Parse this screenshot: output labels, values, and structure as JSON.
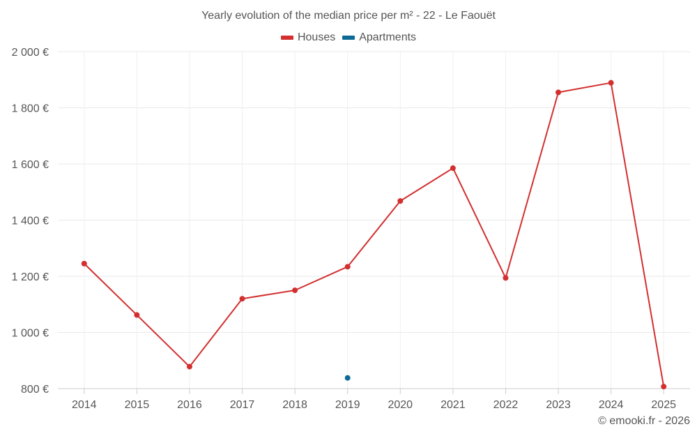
{
  "chart_data": {
    "type": "line",
    "title": "Yearly evolution of the median price per m² - 22 - Le Faouët",
    "categories": [
      "2014",
      "2015",
      "2016",
      "2017",
      "2018",
      "2019",
      "2020",
      "2021",
      "2022",
      "2023",
      "2024",
      "2025"
    ],
    "series": [
      {
        "name": "Houses",
        "color": "#d32f2f",
        "values": [
          1245,
          1062,
          878,
          1120,
          1150,
          1234,
          1468,
          1585,
          1194,
          1855,
          1889,
          807
        ]
      },
      {
        "name": "Apartments",
        "color": "#0d6996",
        "values": [
          null,
          null,
          null,
          null,
          null,
          838,
          null,
          null,
          null,
          null,
          null,
          null
        ]
      }
    ],
    "ylim": [
      800,
      2000
    ],
    "yticks": [
      800,
      1000,
      1200,
      1400,
      1600,
      1800,
      2000
    ],
    "ytick_labels": [
      "800 €",
      "1 000 €",
      "1 200 €",
      "1 400 €",
      "1 600 €",
      "1 800 €",
      "2 000 €"
    ],
    "grid": true,
    "legend_position": "top-center"
  },
  "credit": "© emooki.fr - 2026"
}
